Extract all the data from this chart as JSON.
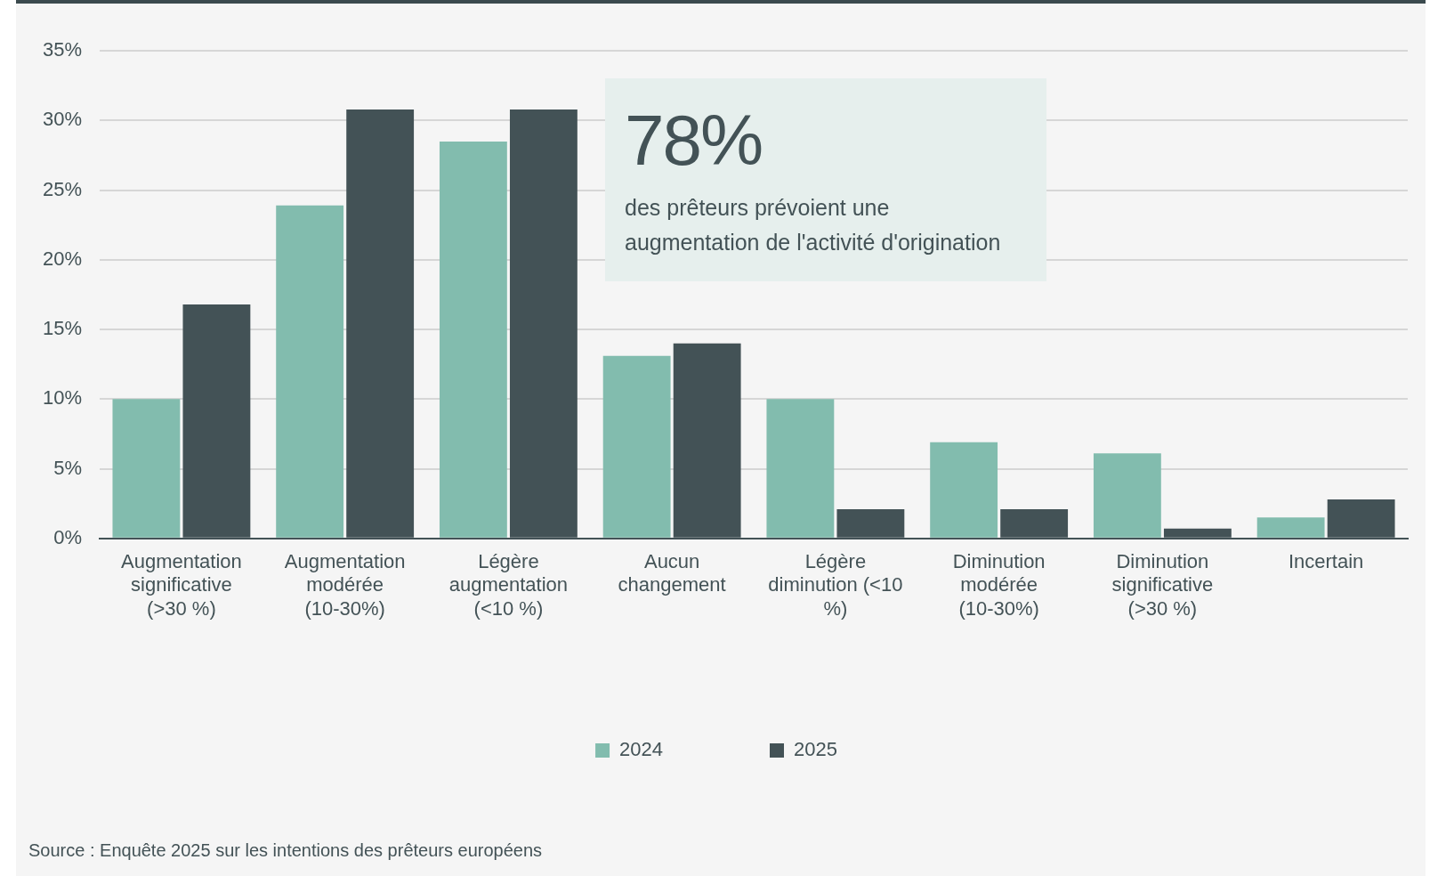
{
  "chart_data": {
    "type": "bar",
    "categories": [
      "Augmentation significative (>30 %)",
      "Augmentation modérée (10-30%)",
      "Légère augmentation (<10 %)",
      "Aucun changement",
      "Légère diminution (<10 %)",
      "Diminution modérée (10-30%)",
      "Diminution significative (>30 %)",
      "Incertain"
    ],
    "series": [
      {
        "name": "2024",
        "color": "#82bcae",
        "values": [
          10,
          23.9,
          28.5,
          13.1,
          10,
          6.9,
          6.1,
          1.5
        ]
      },
      {
        "name": "2025",
        "color": "#435256",
        "values": [
          16.8,
          30.8,
          30.8,
          14,
          2.1,
          2.1,
          0.7,
          2.8
        ]
      }
    ],
    "ylim": [
      0,
      35
    ],
    "yticks": [
      {
        "value": 0,
        "label": "0%"
      },
      {
        "value": 5,
        "label": "5%"
      },
      {
        "value": 10,
        "label": "10%"
      },
      {
        "value": 15,
        "label": "15%"
      },
      {
        "value": 20,
        "label": "20%"
      },
      {
        "value": 25,
        "label": "25%"
      },
      {
        "value": 30,
        "label": "30%"
      },
      {
        "value": 35,
        "label": "35%"
      }
    ],
    "grid": "y",
    "legend": "bottom",
    "annotations": [
      "78%",
      "des prêteurs prévoient une augmentation de l'activité d'origination",
      "Source : Enquête 2025 sur les intentions des prêteurs européens"
    ]
  }
}
